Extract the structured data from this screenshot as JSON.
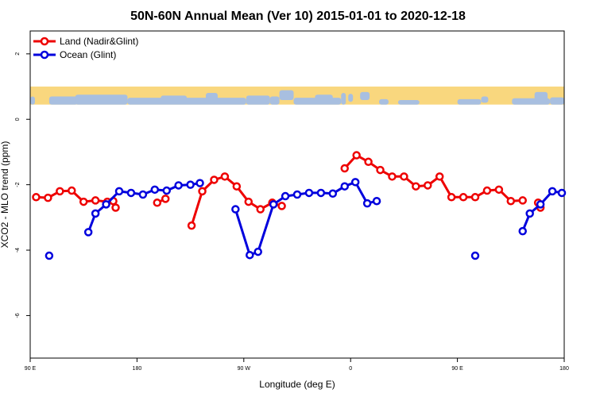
{
  "chart_data": {
    "type": "line",
    "title": "50N-60N Annual Mean (Ver 10)   2015-01-01 to 2020-12-18",
    "xlabel": "Longitude (deg E)",
    "ylabel": "XCO2 - MLO trend (ppm)",
    "xlim": [
      90,
      540
    ],
    "ylim": [
      -7.3,
      2.7
    ],
    "x_ticks": [
      {
        "value": 90,
        "label": "90 E"
      },
      {
        "value": 180,
        "label": "180"
      },
      {
        "value": 270,
        "label": "90 W"
      },
      {
        "value": 360,
        "label": "0"
      },
      {
        "value": 450,
        "label": "90 E"
      },
      {
        "value": 540,
        "label": "180"
      }
    ],
    "y_ticks": [
      {
        "value": 2,
        "label": "2"
      },
      {
        "value": 0,
        "label": "0"
      },
      {
        "value": -2,
        "label": "-2"
      },
      {
        "value": -4,
        "label": "-4"
      },
      {
        "value": -6,
        "label": "-6"
      }
    ],
    "legend": [
      {
        "label": "Land (Nadir&Glint)",
        "color": "#ee0000"
      },
      {
        "label": "Ocean (Glint)",
        "color": "#0000dd"
      }
    ],
    "legend_position": "top-left",
    "map_band": {
      "y_top": 1.0,
      "y_bottom": 0.45,
      "land_color": "#f9d77e",
      "ocean_color": "#a8bfe0"
    },
    "series": [
      {
        "name": "Land (Nadir&Glint)",
        "color": "#ee0000",
        "segments": [
          [
            [
              95,
              -2.38
            ],
            [
              105,
              -2.4
            ],
            [
              115,
              -2.2
            ],
            [
              125,
              -2.18
            ],
            [
              135,
              -2.52
            ],
            [
              145,
              -2.48
            ],
            [
              155,
              -2.52
            ],
            [
              160,
              -2.5
            ],
            [
              162,
              -2.7
            ]
          ],
          [
            [
              197,
              -2.55
            ],
            [
              204,
              -2.43
            ]
          ],
          [
            [
              226,
              -3.25
            ],
            [
              235,
              -2.2
            ],
            [
              245,
              -1.85
            ],
            [
              254,
              -1.75
            ],
            [
              264,
              -2.05
            ],
            [
              274,
              -2.52
            ],
            [
              284,
              -2.75
            ],
            [
              294,
              -2.55
            ],
            [
              302,
              -2.65
            ]
          ],
          [
            [
              355,
              -1.5
            ],
            [
              365,
              -1.1
            ],
            [
              375,
              -1.3
            ],
            [
              385,
              -1.55
            ],
            [
              395,
              -1.75
            ],
            [
              405,
              -1.75
            ],
            [
              415,
              -2.05
            ],
            [
              425,
              -2.02
            ],
            [
              435,
              -1.75
            ],
            [
              445,
              -2.38
            ],
            [
              455,
              -2.38
            ],
            [
              465,
              -2.38
            ],
            [
              475,
              -2.18
            ],
            [
              485,
              -2.15
            ],
            [
              495,
              -2.5
            ],
            [
              505,
              -2.48
            ]
          ],
          [
            [
              518,
              -2.55
            ],
            [
              520,
              -2.7
            ]
          ]
        ]
      },
      {
        "name": "Ocean (Glint)",
        "color": "#0000dd",
        "segments": [
          [
            [
              106,
              -4.17
            ]
          ],
          [
            [
              139,
              -3.45
            ],
            [
              145,
              -2.88
            ],
            [
              154,
              -2.6
            ],
            [
              165,
              -2.2
            ],
            [
              175,
              -2.25
            ],
            [
              185,
              -2.3
            ],
            [
              195,
              -2.15
            ],
            [
              205,
              -2.18
            ],
            [
              215,
              -2.02
            ],
            [
              225,
              -2.0
            ],
            [
              233,
              -1.95
            ]
          ],
          [
            [
              263,
              -2.75
            ],
            [
              275,
              -4.15
            ],
            [
              282,
              -4.05
            ],
            [
              295,
              -2.6
            ],
            [
              305,
              -2.35
            ],
            [
              315,
              -2.3
            ],
            [
              325,
              -2.25
            ],
            [
              335,
              -2.25
            ],
            [
              345,
              -2.27
            ],
            [
              355,
              -2.05
            ],
            [
              364,
              -1.92
            ],
            [
              374,
              -2.57
            ],
            [
              382,
              -2.5
            ]
          ],
          [
            [
              465,
              -4.17
            ]
          ],
          [
            [
              505,
              -3.42
            ],
            [
              511,
              -2.88
            ],
            [
              520,
              -2.6
            ],
            [
              530,
              -2.2
            ],
            [
              538,
              -2.25
            ]
          ]
        ]
      }
    ]
  }
}
